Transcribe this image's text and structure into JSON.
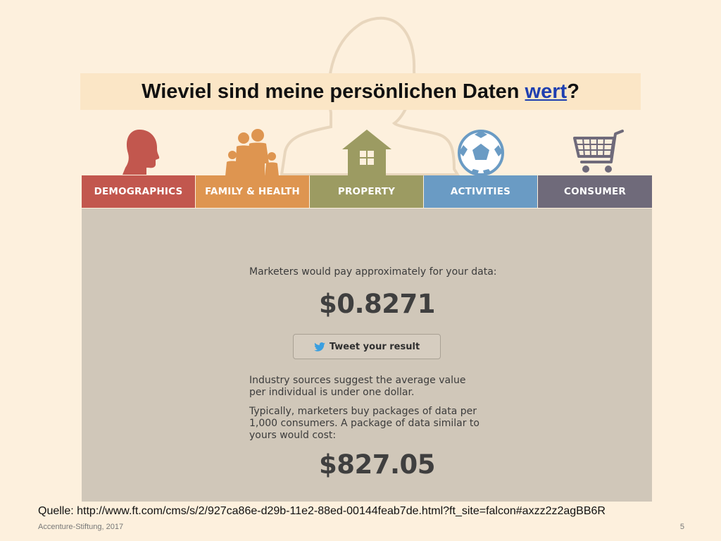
{
  "slide": {
    "title_text": "Wieviel sind meine persönlichen Daten ",
    "title_link": "wert",
    "title_end": "?",
    "source": "Quelle: http://www.ft.com/cms/s/2/927ca86e-d29b-11e2-88ed-00144feab7de.html?ft_site=falcon#axzz2z2agBB6R",
    "footer_left": "Accenture-Stiftung, 2017",
    "page_number": "5"
  },
  "tabs": [
    {
      "label": "DEMOGRAPHICS",
      "color": "#c2574e",
      "icon": "person-head-icon"
    },
    {
      "label": "FAMILY & HEALTH",
      "color": "#de9550",
      "icon": "family-icon"
    },
    {
      "label": "PROPERTY",
      "color": "#9c9b62",
      "icon": "house-icon"
    },
    {
      "label": "ACTIVITIES",
      "color": "#6a9bc4",
      "icon": "soccer-ball-icon"
    },
    {
      "label": "CONSUMER",
      "color": "#6f6a7a",
      "icon": "shopping-cart-icon"
    }
  ],
  "result": {
    "lead": "Marketers would pay approximately for your data:",
    "price": "$0.8271",
    "tweet_label": "Tweet your result",
    "para1": "Industry sources suggest the average value per individual is under one dollar.",
    "para2": "Typically, marketers buy packages of data per 1,000 consumers. A package of data similar to yours would cost:",
    "package_price": "$827.05"
  }
}
